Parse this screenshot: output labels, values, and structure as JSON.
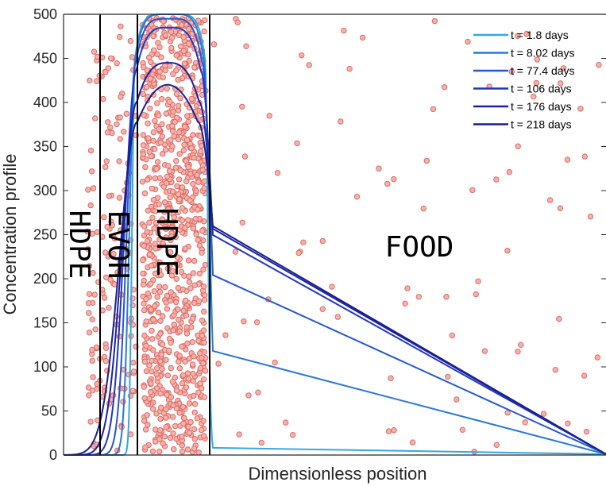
{
  "chart_data": {
    "type": "line",
    "title": "",
    "xlabel": "Dimensionless position",
    "ylabel": "Concentration profile",
    "ylim": [
      0,
      500
    ],
    "y_ticks": [
      0,
      50,
      100,
      150,
      200,
      250,
      300,
      350,
      400,
      450,
      500
    ],
    "x_ticks_labeled": false,
    "grid": false,
    "legend_position": "top-right",
    "layer_labels": [
      "HDPE",
      "EVOH",
      "HDPE",
      "FOOD"
    ],
    "series": [
      {
        "name": "t = 1.8 days",
        "color": "#35a7e6",
        "peak": 500
      },
      {
        "name": "t = 8.02 days",
        "color": "#2a78d6",
        "peak": 500
      },
      {
        "name": "t = 77.4 days",
        "color": "#2456cf",
        "peak": 495
      },
      {
        "name": "t = 106 days",
        "color": "#1f35c4",
        "peak": 485
      },
      {
        "name": "t = 176 days",
        "color": "#1a22a6",
        "peak": 445
      },
      {
        "name": "t = 218 days",
        "color": "#1a1f8a",
        "peak": 420
      }
    ],
    "scatter_marker": {
      "fill": "#f3b3ad",
      "stroke": "#e06a62"
    }
  }
}
